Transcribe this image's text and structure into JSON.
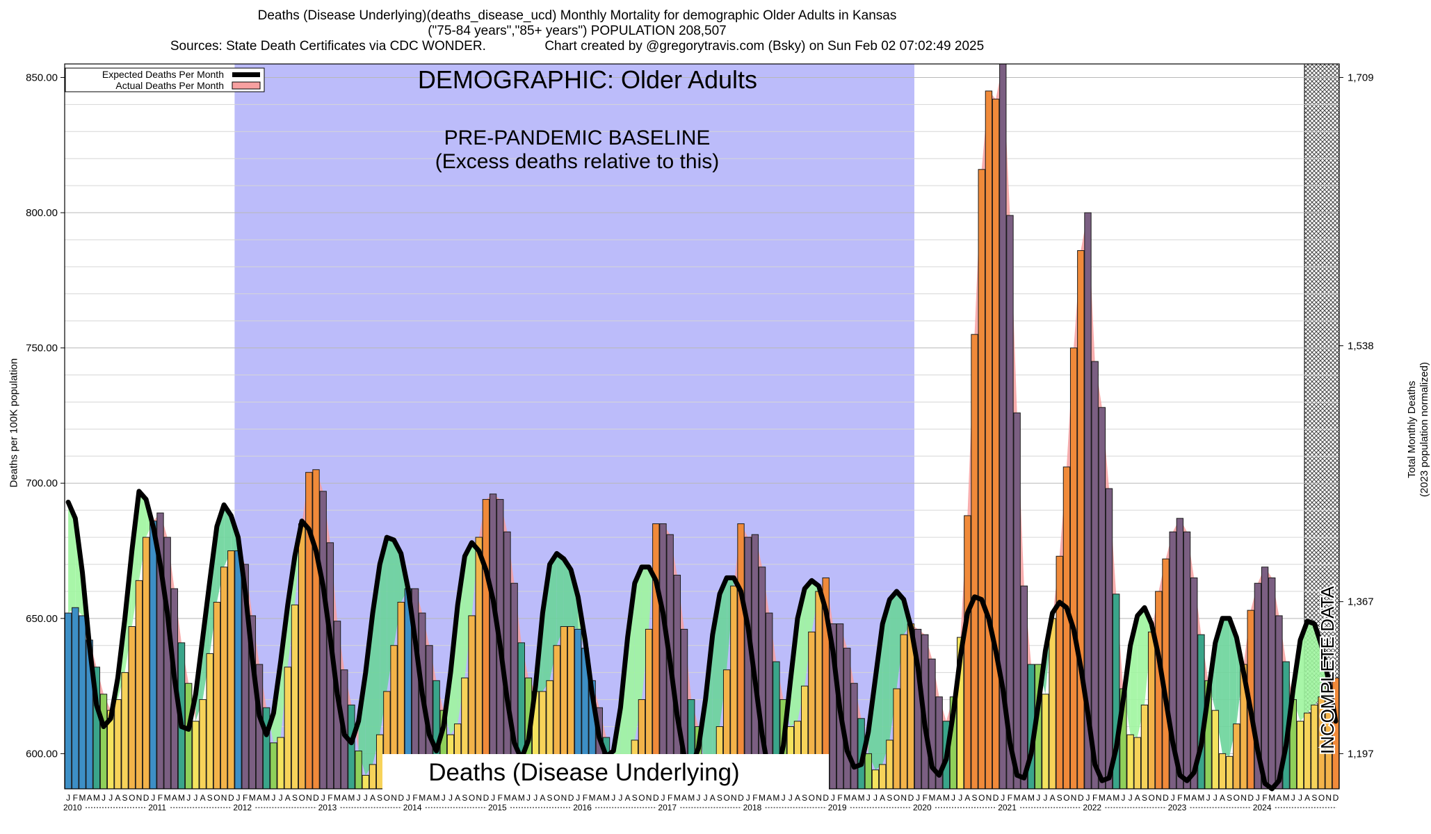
{
  "header": {
    "line1": "Deaths (Disease Underlying)(deaths_disease_ucd) Monthly Mortality for demographic Older Adults in Kansas",
    "line2": "(\"75-84 years\",\"85+ years\") POPULATION 208,507",
    "line3_left": "Sources: State Death Certificates via CDC WONDER.",
    "line3_right": "Chart created by @gregorytravis.com (Bsky) on Sun Feb 02 07:02:49 2025"
  },
  "legend": {
    "expected": "Expected Deaths Per Month",
    "actual": "Actual Deaths Per Month"
  },
  "annotations": {
    "demographic": "DEMOGRAPHIC: Older Adults",
    "baseline_line1": "PRE-PANDEMIC BASELINE",
    "baseline_line2": "(Excess deaths relative to this)",
    "metric_box": "Deaths (Disease Underlying)",
    "incomplete": "INCOMPLETE DATA"
  },
  "axis_labels": {
    "left": "Deaths per 100K population",
    "right_line1": "Total Monthly Deaths",
    "right_line2": "(2023 population normalized)"
  },
  "colors": {
    "baseline_shade": "#bcbcfa",
    "excess_fill": "#9ff59f",
    "excess_fill_dark": "#6ad49a",
    "actual_curve": "#f7a0a0",
    "expected_line": "#000000",
    "winter_bar": "#3d8fc6",
    "summer_bar": "#f4e35e",
    "fall_bar": "#f3b34a",
    "excess_bar": "#f08a3a",
    "excess_bar_winter": "#7b5f82"
  },
  "chart_data": {
    "type": "bar",
    "title": "Deaths (Disease Underlying)(deaths_disease_ucd) Monthly Mortality for demographic Older Adults in Kansas",
    "ylabel": "Deaths per 100K population",
    "y2label": "Total Monthly Deaths (2023 population normalized)",
    "ylim": [
      587,
      855
    ],
    "y_ticks": [
      "600.00",
      "650.00",
      "700.00",
      "750.00",
      "800.00",
      "850.00"
    ],
    "y_tick_values": [
      600,
      650,
      700,
      750,
      800,
      850
    ],
    "y2_ticks": [
      "1,197",
      "1,367",
      "1,538",
      "1,709"
    ],
    "y2_tick_values": [
      600,
      656.2,
      750.8,
      850
    ],
    "start": "2010-01",
    "month_letters": [
      "J",
      "F",
      "M",
      "A",
      "M",
      "J",
      "J",
      "A",
      "S",
      "O",
      "N",
      "D"
    ],
    "year_labels": [
      "2010",
      "2011",
      "2012",
      "2013",
      "2014",
      "2015",
      "2016",
      "2017",
      "2018",
      "2019",
      "2020",
      "2021",
      "2022",
      "2023",
      "2024"
    ],
    "baseline_range": [
      "2012-01",
      "2019-12"
    ],
    "incomplete_from": "2024-09",
    "series": [
      {
        "name": "Actual Deaths Per Month",
        "values": [
          652,
          654,
          651,
          642,
          632,
          622,
          616,
          620,
          630,
          647,
          664,
          680,
          686,
          689,
          680,
          661,
          641,
          626,
          612,
          620,
          637,
          656,
          669,
          675,
          675,
          670,
          651,
          633,
          617,
          604,
          606,
          632,
          655,
          685,
          704,
          705,
          697,
          678,
          649,
          631,
          618,
          601,
          592,
          596,
          607,
          623,
          640,
          656,
          661,
          661,
          652,
          640,
          627,
          616,
          607,
          611,
          628,
          651,
          680,
          694,
          696,
          694,
          682,
          663,
          641,
          628,
          623,
          623,
          627,
          640,
          647,
          647,
          646,
          639,
          627,
          617,
          606,
          598,
          590,
          593,
          605,
          620,
          646,
          685,
          685,
          681,
          666,
          646,
          620,
          610,
          595,
          590,
          610,
          631,
          662,
          685,
          680,
          681,
          669,
          652,
          634,
          620,
          610,
          612,
          625,
          645,
          660,
          665,
          648,
          648,
          639,
          626,
          613,
          600,
          594,
          596,
          605,
          624,
          644,
          648,
          646,
          644,
          635,
          621,
          612,
          621,
          643,
          688,
          755,
          816,
          845,
          842,
          856,
          799,
          726,
          662,
          633,
          633,
          622,
          650,
          673,
          706,
          750,
          786,
          800,
          745,
          728,
          698,
          659,
          624,
          607,
          606,
          618,
          645,
          660,
          672,
          682,
          687,
          682,
          665,
          644,
          627,
          616,
          600,
          599,
          611,
          633,
          653,
          663,
          669,
          665,
          651,
          634,
          620,
          612,
          615,
          618,
          621,
          625,
          628
        ]
      },
      {
        "name": "Expected Deaths Per Month",
        "values": [
          693,
          687,
          667,
          640,
          618,
          610,
          613,
          628,
          650,
          675,
          697,
          694,
          684,
          670,
          652,
          628,
          610,
          609,
          622,
          643,
          664,
          684,
          692,
          688,
          680,
          660,
          635,
          614,
          607,
          615,
          634,
          655,
          673,
          686,
          683,
          675,
          662,
          643,
          622,
          607,
          604,
          612,
          630,
          652,
          670,
          680,
          679,
          674,
          661,
          642,
          622,
          607,
          601,
          610,
          630,
          655,
          673,
          678,
          675,
          668,
          657,
          640,
          620,
          604,
          598,
          605,
          625,
          652,
          670,
          674,
          672,
          668,
          658,
          642,
          622,
          606,
          599,
          601,
          617,
          643,
          663,
          669,
          669,
          664,
          652,
          634,
          614,
          599,
          595,
          602,
          620,
          644,
          659,
          665,
          665,
          660,
          647,
          627,
          607,
          592,
          591,
          603,
          627,
          650,
          661,
          664,
          662,
          653,
          638,
          616,
          601,
          595,
          596,
          608,
          628,
          648,
          657,
          660,
          657,
          647,
          632,
          610,
          595,
          592,
          598,
          615,
          636,
          652,
          658,
          657,
          650,
          638,
          624,
          604,
          592,
          591,
          600,
          618,
          638,
          652,
          656,
          654,
          646,
          632,
          615,
          596,
          590,
          591,
          602,
          620,
          640,
          651,
          654,
          648,
          636,
          620,
          604,
          592,
          590,
          593,
          603,
          622,
          641,
          650,
          650,
          643,
          630,
          616,
          601,
          589,
          586,
          590,
          603,
          624,
          642,
          649,
          648,
          640,
          627,
          612
        ]
      }
    ]
  }
}
